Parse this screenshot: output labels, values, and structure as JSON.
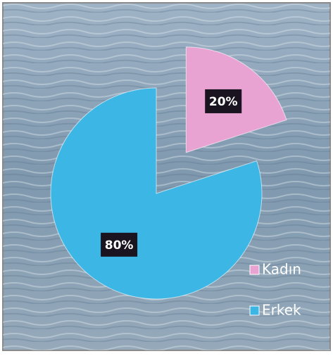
{
  "chart_data": {
    "type": "pie",
    "categories": [
      "Kadın",
      "Erkek"
    ],
    "values": [
      20,
      80
    ],
    "value_labels": [
      "20%",
      "80%"
    ],
    "colors": [
      "#e8a3d3",
      "#3cb6e4"
    ],
    "legend": "right"
  }
}
